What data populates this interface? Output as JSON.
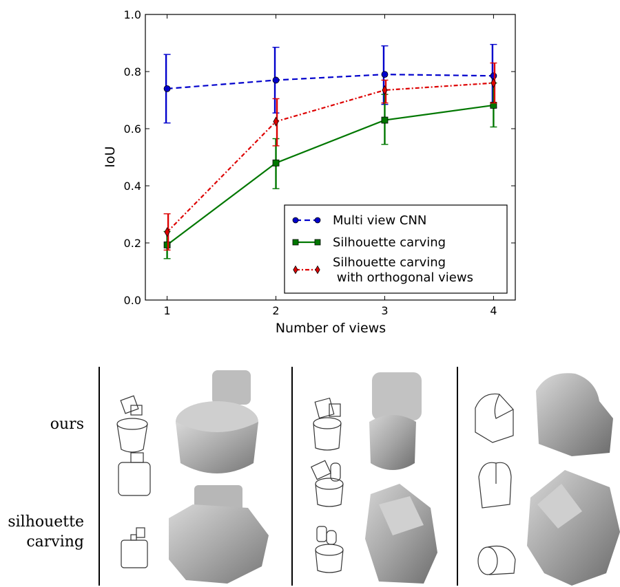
{
  "chart_data": {
    "type": "line",
    "xlabel": "Number of views",
    "ylabel": "IoU",
    "x": [
      1,
      2,
      3,
      4
    ],
    "xlim": [
      0.8,
      4.2
    ],
    "ylim": [
      0.0,
      1.0
    ],
    "xticks": [
      "1",
      "2",
      "3",
      "4"
    ],
    "yticks": [
      "0.0",
      "0.2",
      "0.4",
      "0.6",
      "0.8",
      "1.0"
    ],
    "legend_position": "bottom-right",
    "series": [
      {
        "name": "Multi view CNN",
        "values": [
          0.74,
          0.77,
          0.79,
          0.785
        ],
        "err_low": [
          0.62,
          0.655,
          0.685,
          0.675
        ],
        "err_high": [
          0.86,
          0.885,
          0.89,
          0.895
        ],
        "color": "#0000cc",
        "linestyle": "dashed",
        "marker": "circle"
      },
      {
        "name": "Silhouette carving",
        "values": [
          0.193,
          0.48,
          0.63,
          0.682
        ],
        "err_low": [
          0.145,
          0.39,
          0.545,
          0.606
        ],
        "err_high": [
          0.24,
          0.565,
          0.72,
          0.76
        ],
        "color": "#007700",
        "linestyle": "solid",
        "marker": "square"
      },
      {
        "name": "Silhouette carving\n with orthogonal views",
        "legend_lines": [
          "Silhouette carving",
          " with orthogonal views"
        ],
        "values": [
          0.238,
          0.625,
          0.735,
          0.76
        ],
        "err_low": [
          0.175,
          0.54,
          0.69,
          0.69
        ],
        "err_high": [
          0.302,
          0.705,
          0.77,
          0.83
        ],
        "color": "#dd0000",
        "linestyle": "dashdot",
        "marker": "diamond"
      }
    ]
  },
  "figure": {
    "row_labels": {
      "ours": "ours",
      "silhouette_line1": "silhouette",
      "silhouette_line2": "carving"
    }
  }
}
